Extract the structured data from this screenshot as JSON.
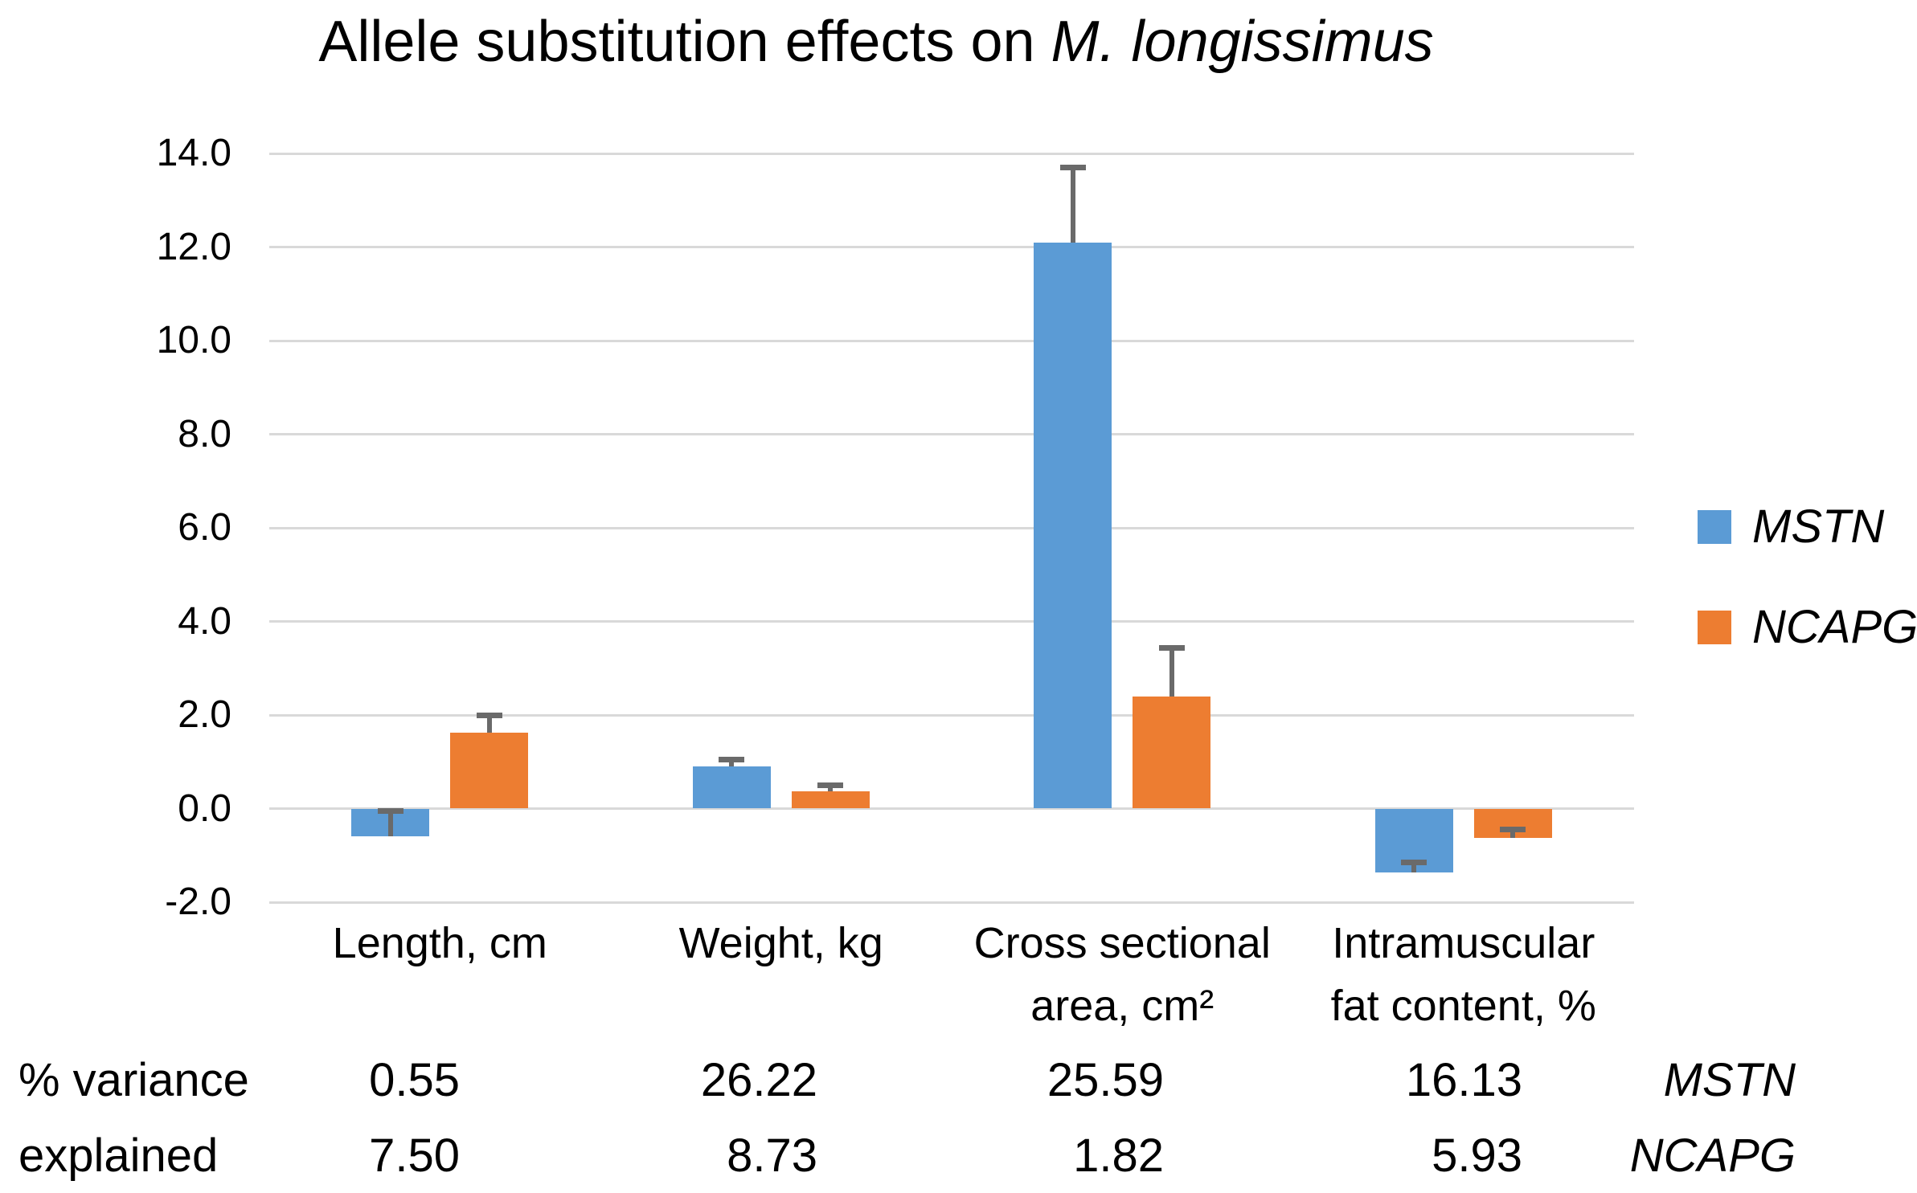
{
  "title": {
    "prefix": "Allele substitution effects on ",
    "italic_species": "M. longissimus"
  },
  "chart_data": {
    "type": "bar",
    "title": "Allele substitution effects on M. longissimus",
    "categories": [
      "Length, cm",
      "Weight, kg",
      "Cross sectional area, cm²",
      "Intramuscular fat content, %"
    ],
    "category_label_lines": [
      [
        "Length, cm"
      ],
      [
        "Weight, kg"
      ],
      [
        "Cross sectional",
        "area, cm²"
      ],
      [
        "Intramuscular",
        "fat content, %"
      ]
    ],
    "series": [
      {
        "name": "MSTN",
        "color": "#5B9BD5",
        "values": [
          -0.6,
          0.9,
          12.1,
          -1.36
        ],
        "errors_plus": [
          0.55,
          0.15,
          1.6,
          0.21
        ]
      },
      {
        "name": "NCAPG",
        "color": "#ED7D31",
        "values": [
          1.63,
          0.37,
          2.4,
          -0.62
        ],
        "errors_plus": [
          0.37,
          0.13,
          1.05,
          0.19
        ]
      }
    ],
    "xlabel": "",
    "ylabel": "",
    "ylim": [
      -2,
      14
    ],
    "ytick_step": 2,
    "ytick_labels": [
      "14.0",
      "12.0",
      "10.0",
      "8.0",
      "6.0",
      "4.0",
      "2.0",
      "0.0",
      "-2.0"
    ],
    "grid": true,
    "legend_position": "right-middle",
    "error_bars": "plus-direction only, capped"
  },
  "legend": {
    "items": [
      {
        "label": "MSTN",
        "color": "#5B9BD5"
      },
      {
        "label": "NCAPG",
        "color": "#ED7D31"
      }
    ]
  },
  "variance_table": {
    "row_header_lines": [
      "% variance",
      "explained"
    ],
    "columns": [
      "Length, cm",
      "Weight, kg",
      "Cross sectional area, cm²",
      "Intramuscular fat content, %"
    ],
    "rows": [
      {
        "gene": "MSTN",
        "values": [
          "0.55",
          "26.22",
          "25.59",
          "16.13"
        ]
      },
      {
        "gene": "NCAPG",
        "values": [
          "7.50",
          "8.73",
          "1.82",
          "5.93"
        ]
      }
    ]
  },
  "colors": {
    "mstn": "#5B9BD5",
    "ncapg": "#ED7D31",
    "gridline": "#D9D9D9",
    "error_bar": "#6A6A6A",
    "text": "#000000",
    "background": "#FFFFFF"
  }
}
